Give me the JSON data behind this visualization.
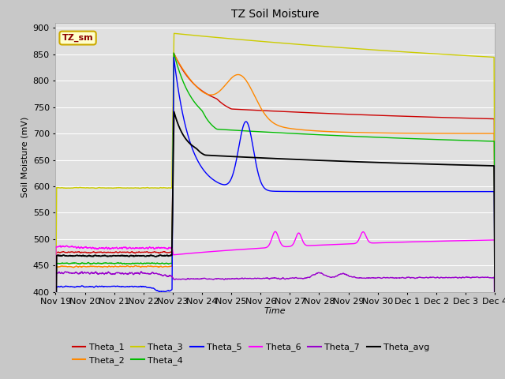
{
  "title": "TZ Soil Moisture",
  "xlabel": "Time",
  "ylabel": "Soil Moisture (mV)",
  "ylim": [
    400,
    910
  ],
  "yticks": [
    400,
    450,
    500,
    550,
    600,
    650,
    700,
    750,
    800,
    850,
    900
  ],
  "x_labels": [
    "Nov 19",
    "Nov 20",
    "Nov 21",
    "Nov 22",
    "Nov 23",
    "Nov 24",
    "Nov 25",
    "Nov 26",
    "Nov 27",
    "Nov 28",
    "Nov 29",
    "Nov 30",
    "Dec 1",
    "Dec 2",
    "Dec 3",
    "Dec 4"
  ],
  "legend_label": "TZ_sm",
  "series_colors": {
    "Theta_1": "#cc0000",
    "Theta_2": "#ff8800",
    "Theta_3": "#cccc00",
    "Theta_4": "#00bb00",
    "Theta_5": "#0000ff",
    "Theta_6": "#ff00ff",
    "Theta_7": "#9900cc",
    "Theta_avg": "#000000"
  },
  "fig_facecolor": "#c8c8c8",
  "ax_facecolor": "#e0e0e0",
  "grid_color": "#ffffff",
  "linewidth": 1.0
}
